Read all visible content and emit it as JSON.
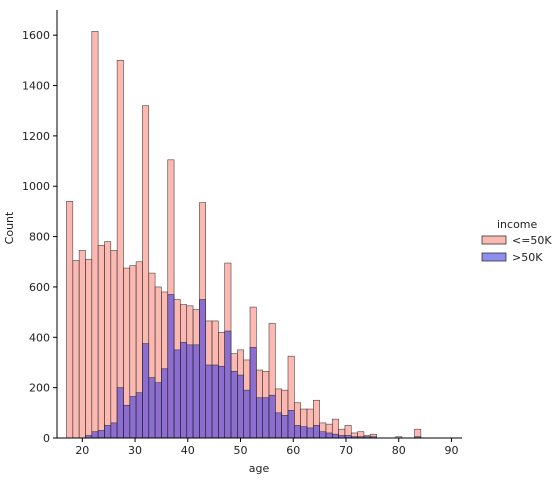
{
  "chart_data": {
    "type": "bar",
    "title": "",
    "xlabel": "age",
    "ylabel": "Count",
    "xlim": [
      17,
      90
    ],
    "ylim": [
      0,
      1700
    ],
    "x_ticks": [
      20,
      30,
      40,
      50,
      60,
      70,
      80,
      90
    ],
    "y_ticks": [
      0,
      200,
      400,
      600,
      800,
      1000,
      1200,
      1400,
      1600
    ],
    "bin_width": 1.2,
    "bin_start": 17,
    "grid": false,
    "legend": {
      "title": "income",
      "placement": "right"
    },
    "series": [
      {
        "name": "<=50K",
        "color": "#fa8072",
        "values": [
          940,
          705,
          745,
          710,
          1615,
          765,
          780,
          745,
          1500,
          675,
          685,
          700,
          1320,
          655,
          600,
          580,
          1105,
          550,
          530,
          525,
          510,
          935,
          465,
          465,
          420,
          695,
          335,
          350,
          310,
          520,
          270,
          265,
          455,
          195,
          190,
          325,
          140,
          115,
          115,
          150,
          60,
          55,
          75,
          35,
          50,
          20,
          25,
          10,
          15,
          0,
          0,
          0,
          5,
          0,
          0,
          35
        ]
      },
      {
        "name": ">50K",
        "color": "#1f1fe0",
        "values": [
          0,
          0,
          0,
          10,
          25,
          30,
          50,
          60,
          200,
          130,
          165,
          180,
          375,
          240,
          220,
          275,
          570,
          350,
          380,
          370,
          370,
          550,
          290,
          290,
          285,
          425,
          265,
          250,
          190,
          360,
          160,
          160,
          170,
          100,
          90,
          110,
          50,
          45,
          40,
          50,
          25,
          20,
          15,
          10,
          10,
          5,
          5,
          5,
          5,
          0,
          0,
          0,
          0,
          0,
          0,
          5
        ]
      }
    ]
  }
}
